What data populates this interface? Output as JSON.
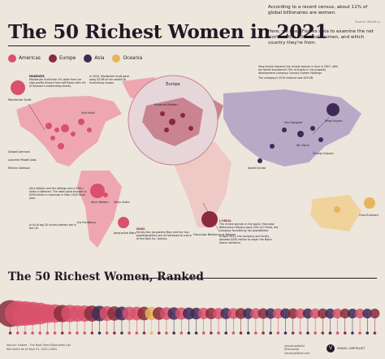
{
  "title": "The 50 Richest Women in 2021",
  "intro": {
    "p1": "According to a recent census, about 11% of global billionaires are women.",
    "note": "Source: Wealth-X",
    "p2": "Here, we used Forbes data to examine the net worth of the 50 richest women, and which country they're from."
  },
  "legend": [
    {
      "label": "Americas",
      "color": "#d9516b"
    },
    {
      "label": "Europe",
      "color": "#8a2a3c"
    },
    {
      "label": "Asia",
      "color": "#3f2a57"
    },
    {
      "label": "Oceania",
      "color": "#e8b45a"
    }
  ],
  "map_labels": {
    "walton_name": "Alice Walton",
    "walton_country": "Walton",
    "cards": [
      {
        "text": "Mackenzie Scott"
      },
      {
        "text": "Julia Koch"
      },
      {
        "text": "Jacqueline Mars"
      },
      {
        "text": "Abigail Johnson"
      },
      {
        "text": "Laurene Powell Jobs"
      },
      {
        "text": "Miriam Adelson"
      },
      {
        "text": "Francoise Bettencourt Meyers"
      },
      {
        "text": "Susanne Klatten"
      },
      {
        "text": "Yang Huiyan"
      },
      {
        "text": "Gina Rinehart"
      },
      {
        "text": "Iris Fontbona"
      },
      {
        "text": "Savitri Jindal"
      },
      {
        "text": "Wu Yajun"
      },
      {
        "text": "Fan Hongwei"
      },
      {
        "text": "Zhong Huijuan"
      }
    ],
    "europe_zoom_title": "Europe",
    "brazil": "Vicky Safra"
  },
  "callouts": {
    "mackenzie_title": "MAKENZIE",
    "mackenzie_text": "MacKenzie Scott took 4% stake from her high-profile divorce from Jeff Bezos with 4% of Amazon's outstanding shares.",
    "mackenzie_year": "In 2020, MacKenzie Scott gave away $5.8B of her wealth to fundraising causes.",
    "alice_text": "Alice Walton and her siblings own a 50%+ stake in Walmart. The retail giant brought in $559 billion in revenues in their 2020 fiscal year.",
    "alice_note": "In all of top 20 richest women are in the US.",
    "mars_title": "MARS",
    "mars_text": "Family ties: Jacqueline Mars and her four granddaughters are all heiresses to a slice of the Mars Inc. fortune.",
    "loreal_title": "L'OREAL",
    "loreal_text": "The richest woman in the world, Francoise Bettencourt Meyers owns 33% of L'Oreal, the company founded by her grandfather.",
    "loreal_note": "In April 2021, the company and family donated $200 million to repair the Notre Dame cathedral.",
    "yang_text": "Yang Huiyan became the richest woman in Asia in 2007, after her father transferred 70% of shares in the property development company Country Garden Holdings.",
    "yang_note": "The company's 2019 revenue was $16.5B."
  },
  "ranked": {
    "subtitle": "The 50 Richest Women, Ranked"
  },
  "chart_data": {
    "type": "bar",
    "title": "The 50 Richest Women, Ranked",
    "region_colors": {
      "Americas": "#d9516b",
      "Europe": "#8a2a3c",
      "Asia": "#3f2a57",
      "Oceania": "#e8b45a"
    },
    "series": [
      {
        "values": [
          73.6,
          67.0,
          60.7,
          53.7,
          46.4,
          33.8,
          31.7,
          27.6,
          27.6,
          24.5,
          23.6,
          22.8,
          21.1,
          18.9,
          17.6,
          15.8,
          15.7,
          15.6,
          15.3,
          14.2,
          13.2,
          12.7,
          12.5,
          11.9,
          11.2,
          10.5,
          10.2,
          9.9,
          9.6,
          9.4,
          9.2,
          9.0,
          8.8,
          8.4,
          8.3,
          8.1,
          7.9,
          7.8,
          7.7,
          7.5,
          7.4,
          7.3,
          7.2,
          7.1,
          7.0,
          6.9,
          6.8,
          6.8,
          6.7,
          6.6
        ]
      },
      {
        "regions": [
          "Europe",
          "Americas",
          "Americas",
          "Americas",
          "Americas",
          "Americas",
          "Americas",
          "Europe",
          "Americas",
          "Americas",
          "Americas",
          "Europe",
          "Asia",
          "Americas",
          "Europe",
          "Asia",
          "Americas",
          "Americas",
          "Europe",
          "Oceania",
          "Europe",
          "Americas",
          "Asia",
          "Americas",
          "Asia",
          "Asia",
          "Americas",
          "Europe",
          "Americas",
          "Asia",
          "Americas",
          "Europe",
          "Asia",
          "Americas",
          "Europe",
          "Asia",
          "Americas",
          "Asia",
          "Europe",
          "Americas",
          "Asia",
          "Americas",
          "Europe",
          "Asia",
          "Americas",
          "Europe",
          "Asia",
          "Americas",
          "Asia",
          "Europe"
        ]
      }
    ]
  },
  "footer": {
    "source": "Source: Forbes · The Real-Time Billionaires List",
    "note": "Net worth as of Sept 23, 2021 (USD)",
    "brand": "VISUAL CAPITALIST",
    "socials": [
      "/visualcapitalist",
      "@visualcap",
      "visualcapitalist.com"
    ]
  }
}
